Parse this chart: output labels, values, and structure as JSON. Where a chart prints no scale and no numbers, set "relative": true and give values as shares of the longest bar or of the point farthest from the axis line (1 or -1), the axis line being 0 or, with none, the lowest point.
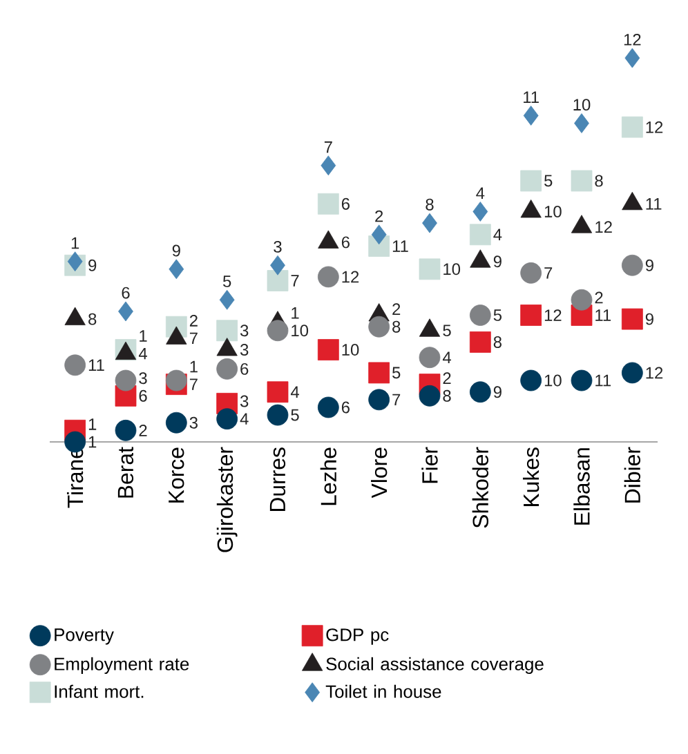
{
  "chart_data": {
    "type": "scatter",
    "relative": true,
    "legend": "bottom",
    "categories": [
      "Tirane",
      "Berat",
      "Korce",
      "Gjirokaster",
      "Durres",
      "Lezhe",
      "Vlore",
      "Fier",
      "Shkoder",
      "Kukes",
      "Elbasan",
      "Dibier"
    ],
    "series": [
      {
        "name": "Poverty",
        "color": "#003a5c",
        "marker": "circle",
        "values": [
          0,
          0.03,
          0.05,
          0.06,
          0.07,
          0.09,
          0.11,
          0.12,
          0.13,
          0.16,
          0.16,
          0.18
        ]
      },
      {
        "name": "GDP pc",
        "color": "#e0202a",
        "marker": "square",
        "values": [
          0.03,
          0.12,
          0.15,
          0.1,
          0.13,
          0.24,
          0.18,
          0.15,
          0.26,
          0.33,
          0.33,
          0.32
        ]
      },
      {
        "name": "Employment rate",
        "color": "#808285",
        "marker": "circle",
        "values": [
          0.2,
          0.16,
          0.16,
          0.19,
          0.29,
          0.43,
          0.3,
          0.22,
          0.33,
          0.44,
          0.37,
          0.46
        ]
      },
      {
        "name": "Social assistance coverage",
        "color": "#231f20",
        "marker": "triangle",
        "values": [
          0.32,
          0.23,
          0.27,
          0.24,
          0.31,
          0.52,
          0.33,
          0.29,
          0.47,
          0.6,
          0.56,
          0.62
        ]
      },
      {
        "name": "Infant mort.",
        "color": "#c9ddd8",
        "marker": "square",
        "values": [
          0.46,
          0.24,
          0.3,
          0.29,
          0.42,
          0.62,
          0.51,
          0.45,
          0.54,
          0.68,
          0.68,
          0.82
        ]
      },
      {
        "name": "Toilet in house",
        "color": "#4a86b4",
        "marker": "diamond",
        "values": [
          0.47,
          0.34,
          0.45,
          0.37,
          0.46,
          0.72,
          0.54,
          0.57,
          0.6,
          0.85,
          0.83,
          1
        ]
      }
    ],
    "annotations": [
      {
        "text": "1",
        "x": "Tirane",
        "y": 0
      },
      {
        "text": "2",
        "x": "Berat",
        "y": 0.03
      },
      {
        "text": "3",
        "x": "Korce",
        "y": 0.05
      },
      {
        "text": "4",
        "x": "Gjirokaster",
        "y": 0.06
      },
      {
        "text": "5",
        "x": "Durres",
        "y": 0.07
      },
      {
        "text": "6",
        "x": "Lezhe",
        "y": 0.09
      },
      {
        "text": "7",
        "x": "Vlore",
        "y": 0.11
      },
      {
        "text": "8",
        "x": "Fier",
        "y": 0.12
      },
      {
        "text": "9",
        "x": "Shkoder",
        "y": 0.13
      },
      {
        "text": "10",
        "x": "Kukes",
        "y": 0.16
      },
      {
        "text": "11",
        "x": "Elbasan",
        "y": 0.16
      },
      {
        "text": "12",
        "x": "Dibier",
        "y": 0.18
      },
      {
        "text": "1",
        "x": "Tirane",
        "y": 0.03
      },
      {
        "text": "6",
        "x": "Berat",
        "y": 0.12
      },
      {
        "text": "7",
        "x": "Korce",
        "y": 0.15
      },
      {
        "text": "3",
        "x": "Gjirokaster",
        "y": 0.1
      },
      {
        "text": "4",
        "x": "Durres",
        "y": 0.13
      },
      {
        "text": "10",
        "x": "Lezhe",
        "y": 0.24
      },
      {
        "text": "5",
        "x": "Vlore",
        "y": 0.18
      },
      {
        "text": "2",
        "x": "Fier",
        "y": 0.15
      },
      {
        "text": "8",
        "x": "Shkoder",
        "y": 0.26
      },
      {
        "text": "12",
        "x": "Kukes",
        "y": 0.33
      },
      {
        "text": "11",
        "x": "Elbasan",
        "y": 0.33
      },
      {
        "text": "9",
        "x": "Dibier",
        "y": 0.32
      },
      {
        "text": "11",
        "x": "Tirane",
        "y": 0.2
      },
      {
        "text": "3",
        "x": "Berat",
        "y": 0.16
      },
      {
        "text": "1",
        "x": "Korce",
        "y": 0.16
      },
      {
        "text": "6",
        "x": "Gjirokaster",
        "y": 0.19
      },
      {
        "text": "10",
        "x": "Durres",
        "y": 0.29
      },
      {
        "text": "12",
        "x": "Lezhe",
        "y": 0.43
      },
      {
        "text": "8",
        "x": "Vlore",
        "y": 0.3
      },
      {
        "text": "4",
        "x": "Fier",
        "y": 0.22
      },
      {
        "text": "5",
        "x": "Shkoder",
        "y": 0.33
      },
      {
        "text": "7",
        "x": "Kukes",
        "y": 0.44
      },
      {
        "text": "2",
        "x": "Elbasan",
        "y": 0.37
      },
      {
        "text": "9",
        "x": "Dibier",
        "y": 0.46
      },
      {
        "text": "8",
        "x": "Tirane",
        "y": 0.32
      },
      {
        "text": "4",
        "x": "Berat",
        "y": 0.23
      },
      {
        "text": "7",
        "x": "Korce",
        "y": 0.27
      },
      {
        "text": "3",
        "x": "Gjirokaster",
        "y": 0.24
      },
      {
        "text": "1",
        "x": "Durres",
        "y": 0.31
      },
      {
        "text": "6",
        "x": "Lezhe",
        "y": 0.52
      },
      {
        "text": "2",
        "x": "Vlore",
        "y": 0.33
      },
      {
        "text": "5",
        "x": "Fier",
        "y": 0.29
      },
      {
        "text": "9",
        "x": "Shkoder",
        "y": 0.47
      },
      {
        "text": "10",
        "x": "Kukes",
        "y": 0.6
      },
      {
        "text": "12",
        "x": "Elbasan",
        "y": 0.56
      },
      {
        "text": "11",
        "x": "Dibier",
        "y": 0.62
      },
      {
        "text": "9",
        "x": "Tirane",
        "y": 0.46
      },
      {
        "text": "1",
        "x": "Berat",
        "y": 0.24
      },
      {
        "text": "2",
        "x": "Korce",
        "y": 0.3
      },
      {
        "text": "3",
        "x": "Gjirokaster",
        "y": 0.29
      },
      {
        "text": "7",
        "x": "Durres",
        "y": 0.42
      },
      {
        "text": "6",
        "x": "Lezhe",
        "y": 0.62
      },
      {
        "text": "11",
        "x": "Vlore",
        "y": 0.51
      },
      {
        "text": "10",
        "x": "Fier",
        "y": 0.45
      },
      {
        "text": "4",
        "x": "Shkoder",
        "y": 0.54
      },
      {
        "text": "5",
        "x": "Kukes",
        "y": 0.68
      },
      {
        "text": "8",
        "x": "Elbasan",
        "y": 0.68
      },
      {
        "text": "12",
        "x": "Dibier",
        "y": 0.82
      },
      {
        "text": "1",
        "x": "Tirane",
        "y": 0.47
      },
      {
        "text": "6",
        "x": "Berat",
        "y": 0.34
      },
      {
        "text": "9",
        "x": "Korce",
        "y": 0.45
      },
      {
        "text": "5",
        "x": "Gjirokaster",
        "y": 0.37
      },
      {
        "text": "3",
        "x": "Durres",
        "y": 0.46
      },
      {
        "text": "7",
        "x": "Lezhe",
        "y": 0.72
      },
      {
        "text": "2",
        "x": "Vlore",
        "y": 0.54
      },
      {
        "text": "8",
        "x": "Fier",
        "y": 0.57
      },
      {
        "text": "4",
        "x": "Shkoder",
        "y": 0.6
      },
      {
        "text": "11",
        "x": "Kukes",
        "y": 0.85
      },
      {
        "text": "10",
        "x": "Elbasan",
        "y": 0.83
      },
      {
        "text": "12",
        "x": "Dibier",
        "y": 1
      }
    ]
  }
}
